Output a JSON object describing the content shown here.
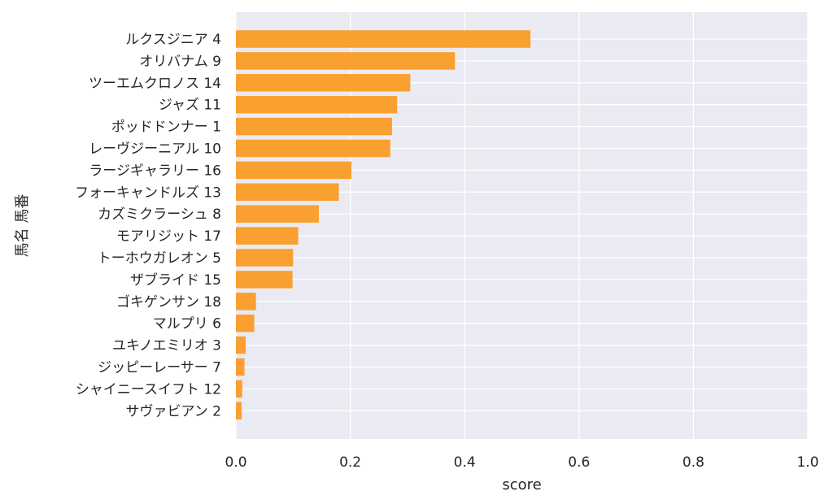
{
  "chart_data": {
    "type": "bar",
    "orientation": "horizontal",
    "xlabel": "score",
    "ylabel": "馬名 馬番",
    "xlim": [
      0,
      1
    ],
    "xticks": [
      "0.0",
      "0.2",
      "0.4",
      "0.6",
      "0.8",
      "1.0"
    ],
    "grid": true,
    "bar_color": "#f9a030",
    "background_color": "#eaeaf2",
    "categories": [
      "ルクスジニア 4",
      "オリバナム 9",
      "ツーエムクロノス 14",
      "ジャズ 11",
      "ポッドドンナー 1",
      "レーヴジーニアル 10",
      "ラージギャラリー 16",
      "フォーキャンドルズ 13",
      "カズミクラーシュ 8",
      "モアリジット 17",
      "トーホウガレオン 5",
      "ザブライド 15",
      "ゴキゲンサン 18",
      "マルプリ 6",
      "ユキノエミリオ 3",
      "ジッピーレーサー 7",
      "シャイニースイフト 12",
      "サヴァビアン 2"
    ],
    "values": [
      0.515,
      0.383,
      0.305,
      0.282,
      0.273,
      0.27,
      0.202,
      0.18,
      0.145,
      0.109,
      0.1,
      0.099,
      0.035,
      0.032,
      0.017,
      0.015,
      0.011,
      0.01
    ]
  }
}
